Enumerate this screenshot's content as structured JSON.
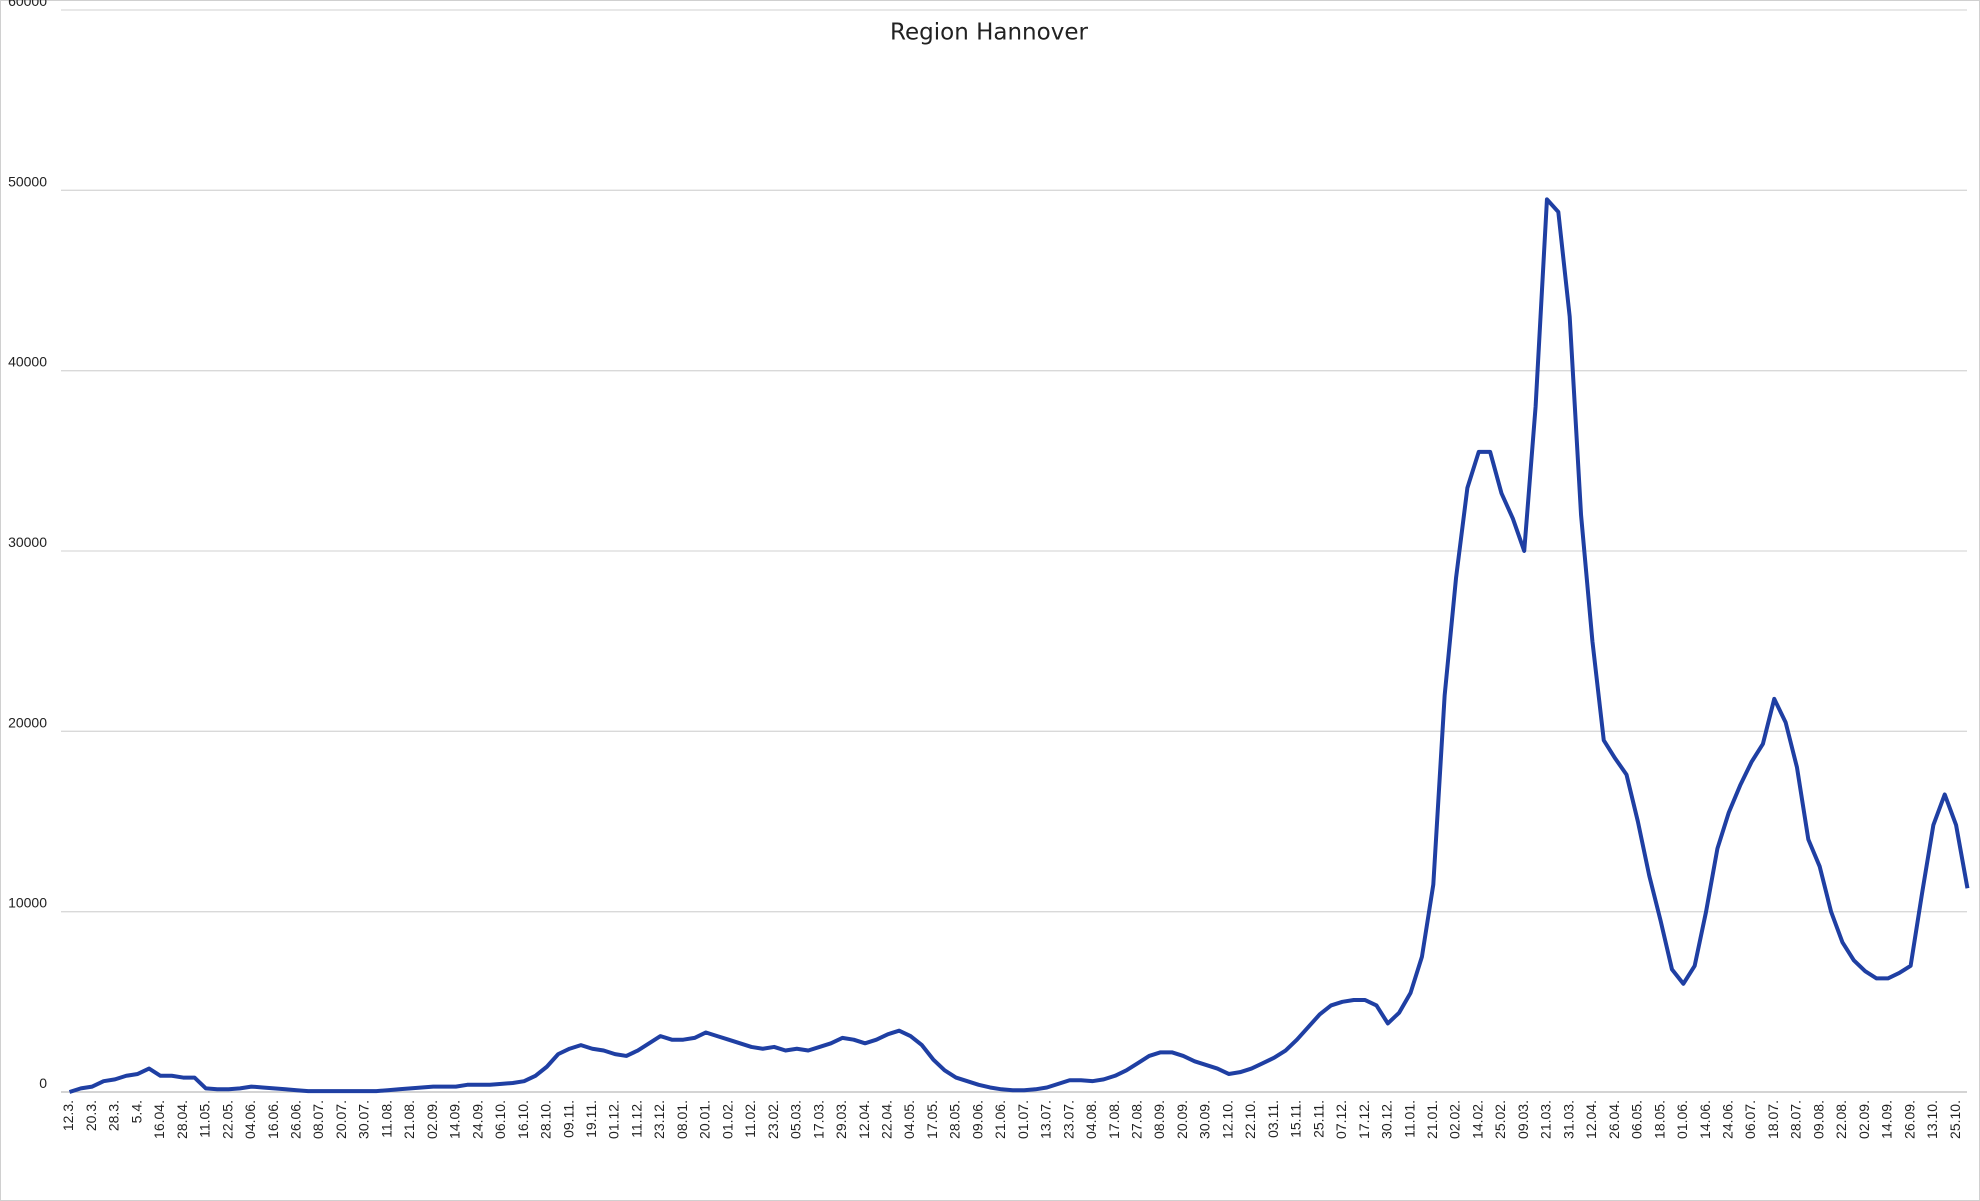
{
  "chart_data": {
    "type": "line",
    "title": "Region Hannover",
    "categories": [
      "12.3.",
      null,
      "20.3.",
      null,
      "28.3.",
      null,
      "5.4.",
      null,
      "16.04.",
      null,
      "28.04.",
      null,
      "11.05.",
      null,
      "22.05.",
      null,
      "04.06.",
      null,
      "16.06.",
      null,
      "26.06.",
      null,
      "08.07.",
      null,
      "20.07.",
      null,
      "30.07.",
      null,
      "11.08.",
      null,
      "21.08.",
      null,
      "02.09.",
      null,
      "14.09.",
      null,
      "24.09.",
      null,
      "06.10.",
      null,
      "16.10.",
      null,
      "28.10.",
      null,
      "09.11.",
      null,
      "19.11.",
      null,
      "01.12.",
      null,
      "11.12.",
      null,
      "23.12.",
      null,
      "08.01.",
      null,
      "20.01.",
      null,
      "01.02.",
      null,
      "11.02.",
      null,
      "23.02.",
      null,
      "05.03.",
      null,
      "17.03.",
      null,
      "29.03.",
      null,
      "12.04.",
      null,
      "22.04.",
      null,
      "04.05.",
      null,
      "17.05.",
      null,
      "28.05.",
      null,
      "09.06.",
      null,
      "21.06.",
      null,
      "01.07.",
      null,
      "13.07.",
      null,
      "23.07.",
      null,
      "04.08.",
      null,
      "17.08.",
      null,
      "27.08.",
      null,
      "08.09.",
      null,
      "20.09.",
      null,
      "30.09.",
      null,
      "12.10.",
      null,
      "22.10.",
      null,
      "03.11.",
      null,
      "15.11.",
      null,
      "25.11.",
      null,
      "07.12.",
      null,
      "17.12.",
      null,
      "30.12.",
      null,
      "11.01.",
      null,
      "21.01.",
      null,
      "02.02.",
      null,
      "14.02.",
      null,
      "25.02.",
      null,
      "09.03.",
      null,
      "21.03.",
      null,
      "31.03.",
      null,
      "12.04.",
      null,
      "26.04.",
      null,
      "06.05.",
      null,
      "18.05.",
      null,
      "01.06.",
      null,
      "14.06.",
      null,
      "24.06.",
      null,
      "06.07.",
      null,
      "18.07.",
      null,
      "28.07.",
      null,
      "09.08.",
      null,
      "22.08.",
      null,
      "02.09.",
      null,
      "14.09.",
      null,
      "26.09.",
      null,
      "13.10.",
      null,
      "25.10.",
      null
    ],
    "series": [
      {
        "color": "#1f3fa3",
        "values": [
          0,
          200,
          300,
          600,
          700,
          900,
          1000,
          1300,
          900,
          900,
          800,
          800,
          200,
          150,
          150,
          200,
          300,
          250,
          200,
          150,
          100,
          50,
          50,
          50,
          50,
          50,
          50,
          50,
          100,
          150,
          200,
          250,
          300,
          300,
          300,
          400,
          400,
          400,
          450,
          500,
          600,
          900,
          1400,
          2100,
          2400,
          2600,
          2400,
          2300,
          2100,
          2000,
          2300,
          2700,
          3100,
          2900,
          2900,
          3000,
          3300,
          3100,
          2900,
          2700,
          2500,
          2400,
          2500,
          2300,
          2400,
          2300,
          2500,
          2700,
          3000,
          2900,
          2700,
          2900,
          3200,
          3400,
          3100,
          2600,
          1800,
          1200,
          800,
          600,
          400,
          250,
          150,
          100,
          100,
          150,
          250,
          450,
          650,
          650,
          600,
          700,
          900,
          1200,
          1600,
          2000,
          2200,
          2200,
          2000,
          1700,
          1500,
          1300,
          1000,
          1100,
          1300,
          1600,
          1900,
          2300,
          2900,
          3600,
          4300,
          4800,
          5000,
          5100,
          5100,
          4800,
          3800,
          4400,
          5500,
          7500,
          11500,
          22000,
          28500,
          33500,
          35500,
          35500,
          33200,
          31800,
          30000,
          38000,
          49500,
          48800,
          43000,
          32000,
          25000,
          19500,
          18500,
          17600,
          15000,
          12000,
          9500,
          6800,
          6000,
          7000,
          10000,
          13500,
          15500,
          17000,
          18300,
          19300,
          21800,
          20500,
          18000,
          14000,
          12500,
          10000,
          8300,
          7300,
          6700,
          6300,
          6300,
          6600,
          7000,
          11000,
          14800,
          16500,
          14800,
          11300
        ]
      }
    ],
    "ylim": [
      0,
      60000
    ],
    "yticks": [
      0,
      10000,
      20000,
      30000,
      40000,
      50000,
      60000
    ],
    "grid": true
  }
}
